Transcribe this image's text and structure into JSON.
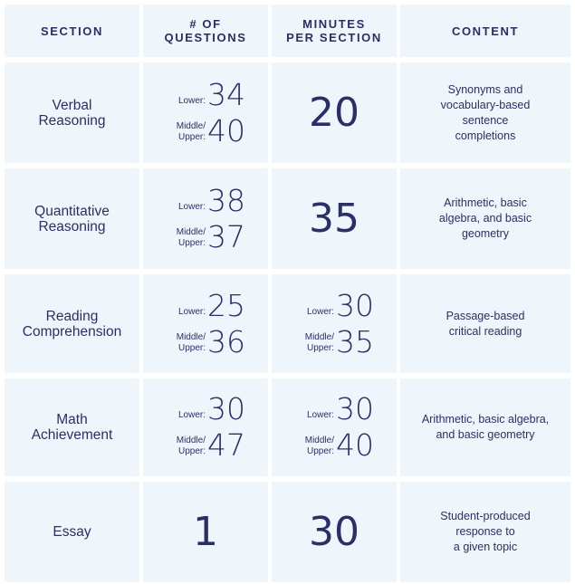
{
  "headers": {
    "section": "SECTION",
    "questions": "# OF\nQUESTIONS",
    "minutes": "MINUTES\nPER SECTION",
    "content": "CONTENT"
  },
  "labels": {
    "lower": "Lower:",
    "middle_upper": "Middle/\nUpper:"
  },
  "rows": [
    {
      "section": "Verbal\nReasoning",
      "questions_lower": "34",
      "questions_mu": "40",
      "minutes": "20",
      "content": "Synonyms and\nvocabulary-based\nsentence\ncompletions"
    },
    {
      "section": "Quantitative\nReasoning",
      "questions_lower": "38",
      "questions_mu": "37",
      "minutes": "35",
      "content": "Arithmetic, basic\nalgebra, and basic\ngeometry"
    },
    {
      "section": "Reading\nComprehension",
      "questions_lower": "25",
      "questions_mu": "36",
      "minutes_lower": "30",
      "minutes_mu": "35",
      "content": "Passage-based\ncritical reading"
    },
    {
      "section": "Math\nAchievement",
      "questions_lower": "30",
      "questions_mu": "47",
      "minutes_lower": "30",
      "minutes_mu": "40",
      "content": "Arithmetic, basic algebra,\nand basic geometry"
    },
    {
      "section": "Essay",
      "questions": "1",
      "minutes": "30",
      "content": "Student-produced\nresponse to\na given topic"
    }
  ]
}
